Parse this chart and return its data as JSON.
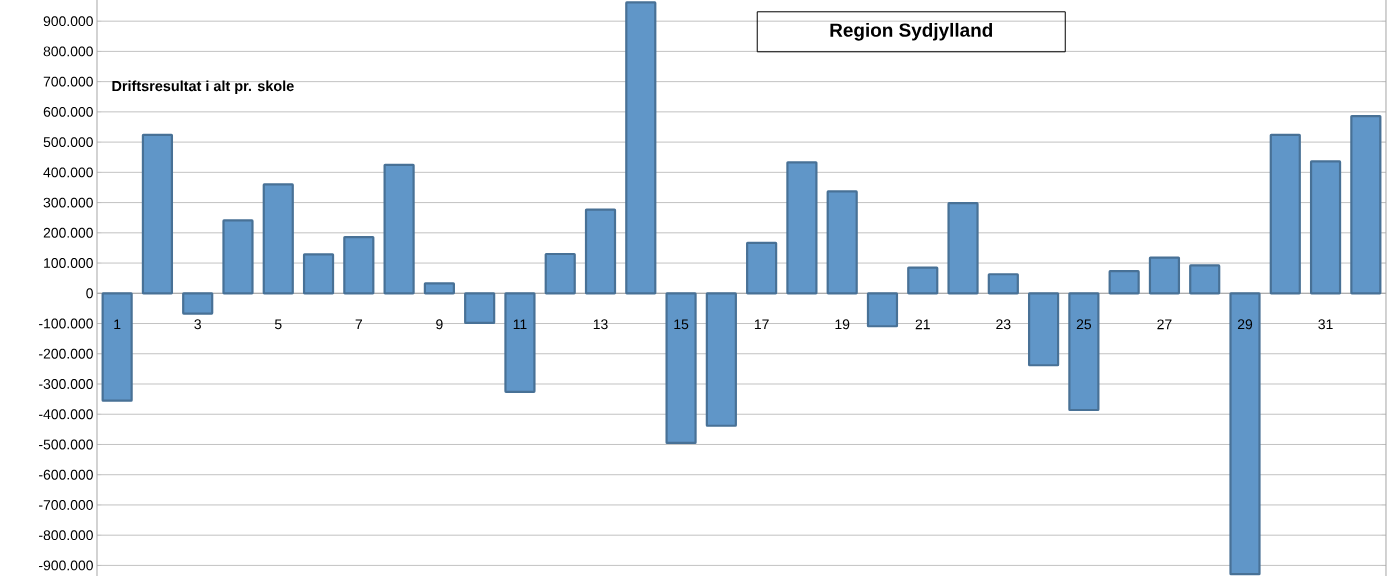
{
  "chart_data": {
    "type": "bar",
    "title": "Region Sydjylland",
    "subtitle": "Driftsresultat i alt pr. skole",
    "categories": [
      "1",
      null,
      "3",
      null,
      "5",
      null,
      "7",
      null,
      "9",
      null,
      "11",
      null,
      "13",
      null,
      "15",
      null,
      "17",
      null,
      "19",
      null,
      "21",
      null,
      "23",
      null,
      "25",
      null,
      "27",
      null,
      "29",
      null,
      "31",
      null
    ],
    "values": [
      -355000,
      524000,
      -67000,
      241000,
      360000,
      129000,
      186000,
      425000,
      33000,
      -98000,
      -326000,
      130000,
      277000,
      962000,
      -495000,
      -438000,
      167000,
      433000,
      337000,
      -109000,
      85000,
      298000,
      63000,
      -238000,
      -386000,
      73000,
      118000,
      92000,
      -929000,
      524000,
      436000,
      586000
    ],
    "color": "#6096c8",
    "ylim": [
      -935000,
      970000
    ],
    "yticks": [
      {
        "value": -900000,
        "label": "-900.000"
      },
      {
        "value": -800000,
        "label": "-800.000"
      },
      {
        "value": -700000,
        "label": "-700.000"
      },
      {
        "value": -600000,
        "label": "-600.000"
      },
      {
        "value": -500000,
        "label": "-500.000"
      },
      {
        "value": -400000,
        "label": "-400.000"
      },
      {
        "value": -300000,
        "label": "-300.000"
      },
      {
        "value": -200000,
        "label": "-200.000"
      },
      {
        "value": -100000,
        "label": "-100.000"
      },
      0,
      {
        "value": 100000,
        "label": "100.000"
      },
      {
        "value": 200000,
        "label": "200.000"
      },
      {
        "value": 300000,
        "label": "300.000"
      },
      {
        "value": 400000,
        "label": "400.000"
      },
      {
        "value": 500000,
        "label": "500.000"
      },
      {
        "value": 600000,
        "label": "600.000"
      },
      {
        "value": 700000,
        "label": "700.000"
      },
      {
        "value": 800000,
        "label": "800.000"
      },
      {
        "value": 900000,
        "label": "900.000"
      }
    ],
    "grid": "y"
  }
}
